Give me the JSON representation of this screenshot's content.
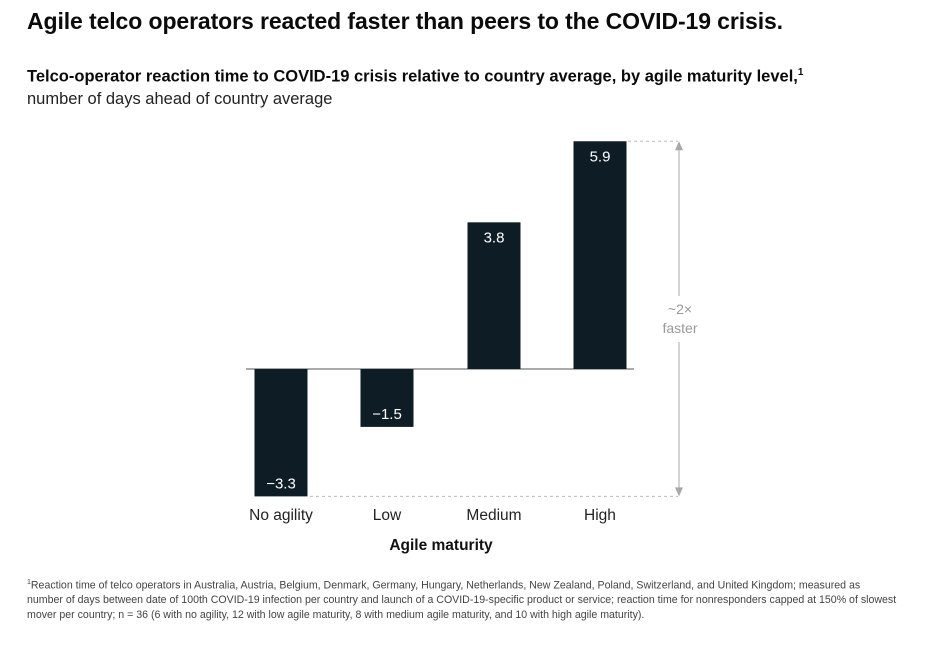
{
  "headline": "Agile telco operators reacted faster than peers to the COVID-19 crisis.",
  "chart_title": "Telco-operator reaction time to COVID-19 crisis relative to country average, by agile maturity level,",
  "chart_title_footnote_mark": "1",
  "chart_units": "number of days ahead of country average",
  "annotation": {
    "line1": "~2×",
    "line2": "faster"
  },
  "footnote": {
    "mark": "1",
    "text": "Reaction time of telco operators in Australia, Austria, Belgium, Denmark, Germany, Hungary, Netherlands, New Zealand, Poland, Switzerland, and United Kingdom; measured as number of days between date of 100th COVID-19 infection per country and launch of a COVID-19-specific product or service; reaction time for nonresponders capped at 150% of slowest mover per country; n = 36 (6 with no agility, 12 with low agile maturity, 8 with medium agile maturity, and 10 with high agile maturity)."
  },
  "colors": {
    "bar": "#0e1c26",
    "bar_label": "#ffffff",
    "axis": "#555555",
    "annotation": "#9a9a9a"
  },
  "chart_data": {
    "type": "bar",
    "categories": [
      "No agility",
      "Low",
      "Medium",
      "High"
    ],
    "values": [
      -3.3,
      -1.5,
      3.8,
      5.9
    ],
    "value_labels": [
      "−3.3",
      "−1.5",
      "3.8",
      "5.9"
    ],
    "xlabel": "Agile maturity",
    "ylabel": "",
    "ylim": [
      -3.3,
      5.9
    ],
    "grid": false,
    "legend": "none"
  }
}
